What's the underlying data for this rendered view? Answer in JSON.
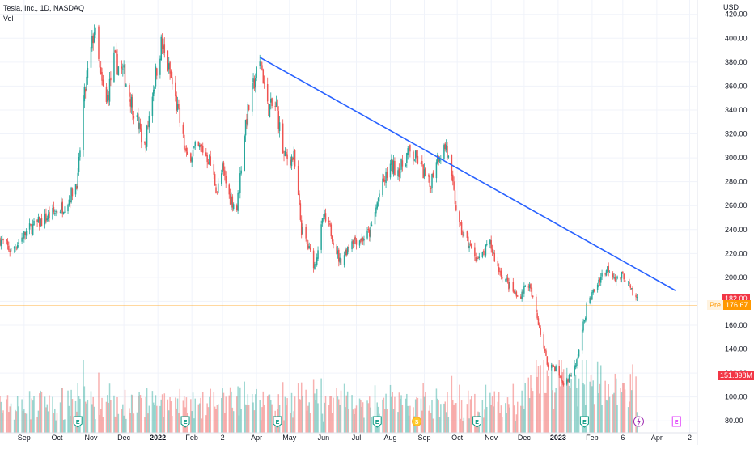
{
  "header": {
    "symbol": "Tesla, Inc., 1D, NASDAQ",
    "indicator": "Vol",
    "currency": "USD"
  },
  "price_tags": {
    "last": {
      "value": "182.00",
      "color": "#f23645"
    },
    "pre": {
      "label": "Pre",
      "value": "176.67",
      "color": "#ff9800"
    },
    "volume": {
      "value": "151.898M",
      "color": "#f23645"
    }
  },
  "colors": {
    "up": "#26a69a",
    "down": "#ef5350",
    "trend": "#2962ff",
    "axis_text": "#131722"
  },
  "chart_data": {
    "type": "candlestick",
    "title": "Tesla, Inc., 1D, NASDAQ",
    "y_ticks": [
      "420.00",
      "400.00",
      "380.00",
      "360.00",
      "340.00",
      "320.00",
      "300.00",
      "280.00",
      "260.00",
      "240.00",
      "220.00",
      "200.00",
      "180.00",
      "160.00",
      "140.00",
      "120.00",
      "100.00",
      "80.00"
    ],
    "ylim": [
      70,
      432
    ],
    "x_ticks": [
      "Sep",
      "Oct",
      "Nov",
      "Dec",
      "2022",
      "Feb",
      "2",
      "Apr",
      "May",
      "Jun",
      "Jul",
      "Aug",
      "Sep",
      "Oct",
      "Nov",
      "Dec",
      "2023",
      "Feb",
      "6",
      "Apr",
      "2"
    ],
    "x_tick_dates": [
      "2021-09-01",
      "2021-10-01",
      "2021-11-01",
      "2021-12-01",
      "2022-01-01",
      "2022-02-01",
      "2022-03-01",
      "2022-04-01",
      "2022-05-01",
      "2022-06-01",
      "2022-07-01",
      "2022-08-01",
      "2022-09-01",
      "2022-10-01",
      "2022-11-01",
      "2022-12-01",
      "2023-01-01",
      "2023-02-01",
      "2023-03-01",
      "2023-04-01",
      "2023-05-01"
    ],
    "xlim": [
      "2021-08-10",
      "2023-05-08"
    ],
    "price_key_points": [
      [
        "2021-08-10",
        232
      ],
      [
        "2021-08-20",
        222
      ],
      [
        "2021-09-05",
        240
      ],
      [
        "2021-09-25",
        252
      ],
      [
        "2021-10-10",
        262
      ],
      [
        "2021-10-20",
        282
      ],
      [
        "2021-10-25",
        345
      ],
      [
        "2021-11-04",
        408
      ],
      [
        "2021-11-10",
        365
      ],
      [
        "2021-11-15",
        345
      ],
      [
        "2021-11-22",
        382
      ],
      [
        "2021-12-01",
        370
      ],
      [
        "2021-12-10",
        340
      ],
      [
        "2021-12-20",
        308
      ],
      [
        "2021-12-27",
        355
      ],
      [
        "2022-01-04",
        395
      ],
      [
        "2022-01-12",
        370
      ],
      [
        "2022-01-20",
        335
      ],
      [
        "2022-01-27",
        300
      ],
      [
        "2022-02-03",
        306
      ],
      [
        "2022-02-10",
        308
      ],
      [
        "2022-02-17",
        298
      ],
      [
        "2022-02-24",
        272
      ],
      [
        "2022-03-01",
        290
      ],
      [
        "2022-03-07",
        268
      ],
      [
        "2022-03-14",
        258
      ],
      [
        "2022-03-22",
        330
      ],
      [
        "2022-03-31",
        368
      ],
      [
        "2022-04-05",
        380
      ],
      [
        "2022-04-11",
        342
      ],
      [
        "2022-04-19",
        343
      ],
      [
        "2022-04-26",
        300
      ],
      [
        "2022-05-05",
        300
      ],
      [
        "2022-05-12",
        240
      ],
      [
        "2022-05-24",
        210
      ],
      [
        "2022-06-01",
        250
      ],
      [
        "2022-06-08",
        238
      ],
      [
        "2022-06-16",
        213
      ],
      [
        "2022-06-27",
        232
      ],
      [
        "2022-07-06",
        232
      ],
      [
        "2022-07-14",
        238
      ],
      [
        "2022-07-22",
        270
      ],
      [
        "2022-08-01",
        293
      ],
      [
        "2022-08-10",
        290
      ],
      [
        "2022-08-17",
        305
      ],
      [
        "2022-08-26",
        298
      ],
      [
        "2022-09-06",
        276
      ],
      [
        "2022-09-12",
        300
      ],
      [
        "2022-09-21",
        310
      ],
      [
        "2022-09-26",
        280
      ],
      [
        "2022-10-03",
        242
      ],
      [
        "2022-10-14",
        223
      ],
      [
        "2022-10-21",
        214
      ],
      [
        "2022-10-31",
        228
      ],
      [
        "2022-11-07",
        208
      ],
      [
        "2022-11-15",
        196
      ],
      [
        "2022-11-25",
        183
      ],
      [
        "2022-12-05",
        195
      ],
      [
        "2022-12-14",
        163
      ],
      [
        "2022-12-22",
        128
      ],
      [
        "2022-12-30",
        124
      ],
      [
        "2023-01-06",
        110
      ],
      [
        "2023-01-17",
        125
      ],
      [
        "2023-01-27",
        175
      ],
      [
        "2023-02-08",
        200
      ],
      [
        "2023-02-16",
        208
      ],
      [
        "2023-02-24",
        198
      ],
      [
        "2023-03-02",
        202
      ],
      [
        "2023-03-10",
        185
      ],
      [
        "2023-03-14",
        182
      ]
    ],
    "trendline": {
      "from": [
        "2022-04-04",
        384
      ],
      "to": [
        "2023-04-18",
        189
      ]
    },
    "last_price": 182.0,
    "pre_price": 176.67,
    "last_volume": "151.898M"
  },
  "event_markers": [
    {
      "label": "E",
      "date": "2021-10-20",
      "kind": "earnings"
    },
    {
      "label": "E",
      "date": "2022-01-26",
      "kind": "earnings"
    },
    {
      "label": "E",
      "date": "2022-04-20",
      "kind": "earnings"
    },
    {
      "label": "E",
      "date": "2022-07-20",
      "kind": "earnings"
    },
    {
      "label": "S",
      "date": "2022-08-25",
      "kind": "split"
    },
    {
      "label": "E",
      "date": "2022-10-19",
      "kind": "earnings"
    },
    {
      "label": "E",
      "date": "2023-01-25",
      "kind": "earnings"
    },
    {
      "label": "E",
      "date": "2023-04-19",
      "kind": "earnings-future"
    }
  ]
}
